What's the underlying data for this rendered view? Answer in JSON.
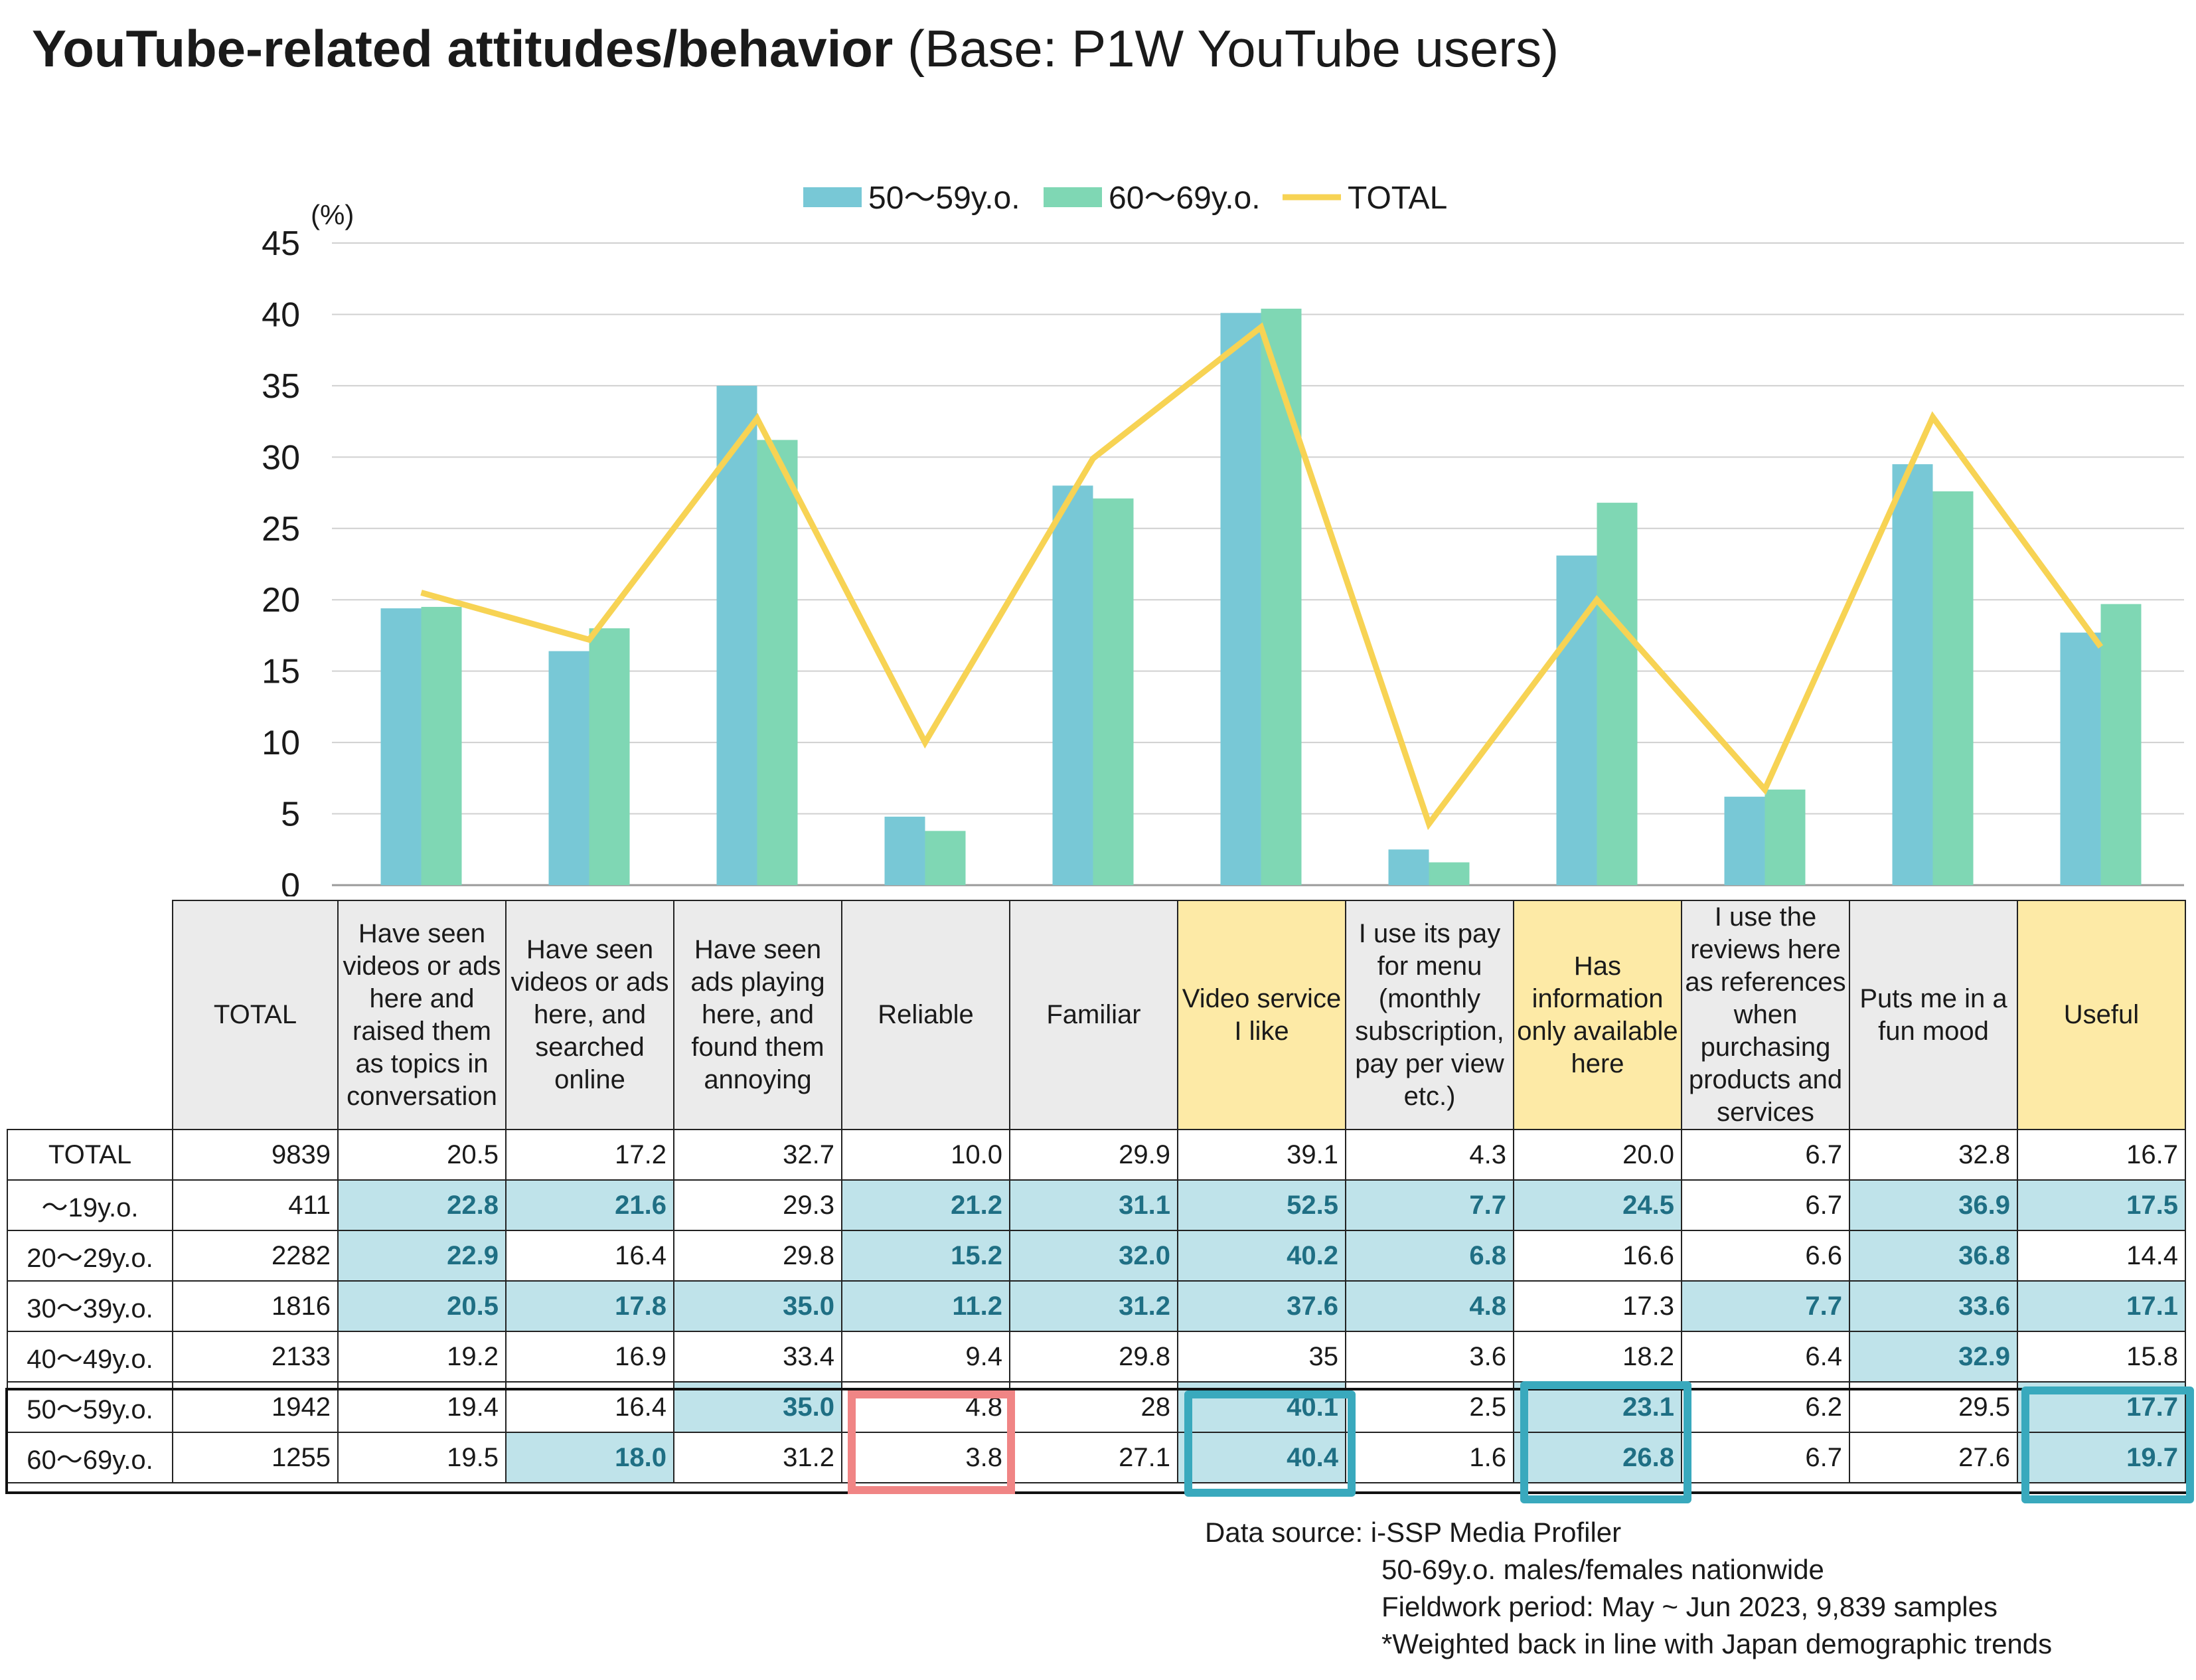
{
  "title": {
    "bold": "YouTube-related attitudes/behavior",
    "normal": "(Base: P1W YouTube users)"
  },
  "chart_data": {
    "type": "bar",
    "y_unit_label": "(%)",
    "ylim": [
      0,
      45
    ],
    "yticks": [
      0,
      5,
      10,
      15,
      20,
      25,
      30,
      35,
      40,
      45
    ],
    "grid": true,
    "legend_position": "top-center",
    "categories": [
      "Have seen videos or ads here and raised them as topics in conversation",
      "Have seen videos or ads here, and searched online",
      "Have seen ads playing here, and found them annoying",
      "Reliable",
      "Familiar",
      "Video service I like",
      "I use its pay for menu (monthly subscription, pay per view etc.)",
      "Has information only available here",
      "I use the reviews here as references when purchasing products and services",
      "Puts me in a fun mood",
      "Useful"
    ],
    "series": [
      {
        "name": "50～59y.o.",
        "type": "bar",
        "color": "#78c8d6",
        "values": [
          19.4,
          16.4,
          35.0,
          4.8,
          28,
          40.1,
          2.5,
          23.1,
          6.2,
          29.5,
          17.7
        ]
      },
      {
        "name": "60～69y.o.",
        "type": "bar",
        "color": "#7fd7b4",
        "values": [
          19.5,
          18.0,
          31.2,
          3.8,
          27.1,
          40.4,
          1.6,
          26.8,
          6.7,
          27.6,
          19.7
        ]
      },
      {
        "name": "TOTAL",
        "type": "line",
        "color": "#f7d354",
        "values": [
          20.5,
          17.2,
          32.7,
          10.0,
          29.9,
          39.1,
          4.3,
          20.0,
          6.7,
          32.8,
          16.7
        ]
      }
    ]
  },
  "table": {
    "corner_header": "TOTAL",
    "columns": [
      "Have seen videos or ads here and raised them as topics in conversation",
      "Have seen videos or ads here, and searched online",
      "Have seen ads playing here, and found them annoying",
      "Reliable",
      "Familiar",
      "Video service I like",
      "I use its pay for menu (monthly subscription, pay per view etc.)",
      "Has information only available here",
      "I use the reviews here as references when purchasing products and services",
      "Puts me in a fun mood",
      "Useful"
    ],
    "highlighted_columns": [
      5,
      7,
      10
    ],
    "rows": [
      {
        "label": "TOTAL",
        "n": "9839",
        "values": [
          "20.5",
          "17.2",
          "32.7",
          "10.0",
          "29.9",
          "39.1",
          "4.3",
          "20.0",
          "6.7",
          "32.8",
          "16.7"
        ],
        "significant": []
      },
      {
        "label": "～19y.o.",
        "n": "411",
        "values": [
          "22.8",
          "21.6",
          "29.3",
          "21.2",
          "31.1",
          "52.5",
          "7.7",
          "24.5",
          "6.7",
          "36.9",
          "17.5"
        ],
        "significant": [
          0,
          1,
          3,
          4,
          5,
          6,
          7,
          9,
          10
        ]
      },
      {
        "label": "20～29y.o.",
        "n": "2282",
        "values": [
          "22.9",
          "16.4",
          "29.8",
          "15.2",
          "32.0",
          "40.2",
          "6.8",
          "16.6",
          "6.6",
          "36.8",
          "14.4"
        ],
        "significant": [
          0,
          3,
          4,
          5,
          6,
          9
        ]
      },
      {
        "label": "30～39y.o.",
        "n": "1816",
        "values": [
          "20.5",
          "17.8",
          "35.0",
          "11.2",
          "31.2",
          "37.6",
          "4.8",
          "17.3",
          "7.7",
          "33.6",
          "17.1"
        ],
        "significant": [
          0,
          1,
          2,
          3,
          4,
          5,
          6,
          8,
          9,
          10
        ]
      },
      {
        "label": "40～49y.o.",
        "n": "2133",
        "values": [
          "19.2",
          "16.9",
          "33.4",
          "9.4",
          "29.8",
          "35",
          "3.6",
          "18.2",
          "6.4",
          "32.9",
          "15.8"
        ],
        "significant": [
          9
        ]
      },
      {
        "label": "50～59y.o.",
        "n": "1942",
        "values": [
          "19.4",
          "16.4",
          "35.0",
          "4.8",
          "28",
          "40.1",
          "2.5",
          "23.1",
          "6.2",
          "29.5",
          "17.7"
        ],
        "significant": [
          2,
          5,
          7,
          10
        ]
      },
      {
        "label": "60～69y.o.",
        "n": "1255",
        "values": [
          "19.5",
          "18.0",
          "31.2",
          "3.8",
          "27.1",
          "40.4",
          "1.6",
          "26.8",
          "6.7",
          "27.6",
          "19.7"
        ],
        "significant": [
          1,
          5,
          7,
          10
        ]
      }
    ]
  },
  "source": {
    "line1": "Data source: i-SSP Media Profiler",
    "line2": "50-69y.o. males/females nationwide",
    "line3": "Fieldwork period: May ~ Jun 2023, 9,839 samples",
    "line4": "*Weighted back in line with Japan demographic trends"
  }
}
